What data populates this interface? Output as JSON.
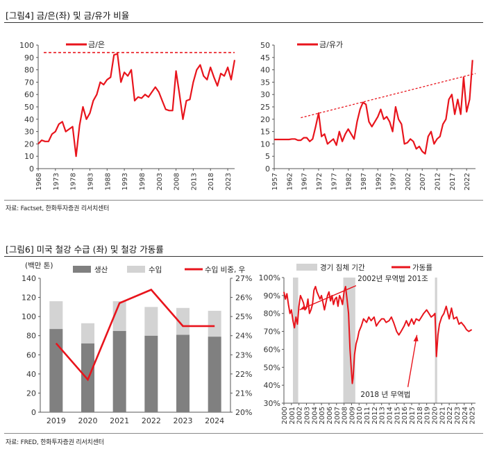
{
  "fig4": {
    "title": "[그림4] 금/은(좌) 및 금/유가 비율",
    "source": "자료: Factset, 한화투자증권 리서치센터"
  },
  "fig6": {
    "title": "[그림6] 미국 철강 수급 (좌) 및 철강 가동률",
    "source": "자료: FRED, 한화투자증권 리서치센터"
  },
  "colors": {
    "accent": "#e8141c",
    "dark_bar": "#808080",
    "light_bar": "#d3d3d3",
    "recession": "#d3d3d3"
  },
  "chart_data": [
    {
      "id": "gold_silver",
      "type": "line",
      "title": "",
      "legend": [
        "금/은"
      ],
      "x_ticks": [
        "1968",
        "1973",
        "1978",
        "1983",
        "1988",
        "1993",
        "1998",
        "2003",
        "2008",
        "2013",
        "2018",
        "2023"
      ],
      "xlim": [
        1968,
        2025
      ],
      "ylim": [
        0,
        100
      ],
      "y_ticks": [
        0,
        10,
        20,
        30,
        40,
        50,
        60,
        70,
        80,
        90,
        100
      ],
      "reference_line": 94,
      "x": [
        1968,
        1969,
        1970,
        1971,
        1972,
        1973,
        1974,
        1975,
        1976,
        1977,
        1978,
        1979,
        1980,
        1981,
        1982,
        1983,
        1984,
        1985,
        1986,
        1987,
        1988,
        1989,
        1990,
        1991,
        1992,
        1993,
        1994,
        1995,
        1996,
        1997,
        1998,
        1999,
        2000,
        2001,
        2002,
        2003,
        2004,
        2005,
        2006,
        2007,
        2008,
        2009,
        2010,
        2011,
        2012,
        2013,
        2014,
        2015,
        2016,
        2017,
        2018,
        2019,
        2020,
        2021,
        2022,
        2023,
        2024,
        2025
      ],
      "y": [
        20,
        23,
        22,
        22,
        28,
        30,
        36,
        38,
        30,
        32,
        34,
        10,
        35,
        50,
        40,
        45,
        55,
        60,
        70,
        68,
        72,
        74,
        92,
        93,
        70,
        78,
        75,
        80,
        55,
        58,
        57,
        60,
        58,
        62,
        66,
        62,
        55,
        48,
        47,
        47,
        79,
        60,
        40,
        55,
        56,
        70,
        80,
        84,
        75,
        72,
        82,
        74,
        67,
        77,
        75,
        82,
        72,
        88
      ]
    },
    {
      "id": "gold_oil",
      "type": "line",
      "title": "",
      "legend": [
        "금/유가"
      ],
      "x_ticks": [
        "1957",
        "1962",
        "1967",
        "1972",
        "1977",
        "1982",
        "1987",
        "1992",
        "1997",
        "2002",
        "2007",
        "2012",
        "2017",
        "2022"
      ],
      "xlim": [
        1957,
        2025
      ],
      "ylim": [
        0,
        50
      ],
      "y_ticks": [
        0,
        5,
        10,
        15,
        20,
        25,
        30,
        35,
        40,
        45,
        50
      ],
      "trend_line": {
        "x": [
          1966,
          2025
        ],
        "y": [
          20.6,
          38.5
        ]
      },
      "x": [
        1957,
        1958,
        1959,
        1960,
        1961,
        1962,
        1963,
        1964,
        1965,
        1966,
        1967,
        1968,
        1969,
        1970,
        1971,
        1972,
        1973,
        1974,
        1975,
        1976,
        1977,
        1978,
        1979,
        1980,
        1981,
        1982,
        1983,
        1984,
        1985,
        1986,
        1987,
        1988,
        1989,
        1990,
        1991,
        1992,
        1993,
        1994,
        1995,
        1996,
        1997,
        1998,
        1999,
        2000,
        2001,
        2002,
        2003,
        2004,
        2005,
        2006,
        2007,
        2008,
        2009,
        2010,
        2011,
        2012,
        2013,
        2014,
        2015,
        2016,
        2017,
        2018,
        2019,
        2020,
        2021,
        2022,
        2023,
        2024
      ],
      "y": [
        11.8,
        11.8,
        11.8,
        11.8,
        11.8,
        11.8,
        12,
        12,
        11.5,
        11.5,
        12.5,
        12.5,
        11,
        12,
        17,
        22.5,
        13,
        14,
        10,
        11,
        12,
        9.5,
        15,
        11,
        14,
        16,
        14,
        12,
        19,
        24,
        26.8,
        26,
        19,
        17,
        19,
        21,
        24,
        20,
        21,
        19,
        15,
        25,
        20,
        18,
        10,
        10.5,
        12,
        11,
        8,
        9,
        7,
        6,
        13,
        15,
        10,
        12,
        13,
        18,
        20,
        28,
        30,
        22,
        28,
        22,
        37,
        23,
        28,
        44
      ]
    },
    {
      "id": "steel_supply",
      "type": "bar",
      "title": "",
      "unit_label": "(백만 톤)",
      "categories": [
        "2019",
        "2020",
        "2021",
        "2022",
        "2023",
        "2024"
      ],
      "series": [
        {
          "name": "생산",
          "values": [
            87,
            72,
            85,
            80,
            81,
            79
          ]
        },
        {
          "name": "수입",
          "values": [
            29,
            21,
            31,
            30,
            28,
            27
          ]
        }
      ],
      "line_series": {
        "name": "수입 비중, 우",
        "values": [
          23.6,
          21.7,
          25.7,
          26.4,
          24.5,
          24.5
        ]
      },
      "ylim": [
        0,
        140
      ],
      "y_ticks": [
        0,
        20,
        40,
        60,
        80,
        100,
        120,
        140
      ],
      "y2lim": [
        20,
        27
      ],
      "y2_ticks": [
        "20%",
        "21%",
        "22%",
        "23%",
        "24%",
        "25%",
        "26%",
        "27%"
      ]
    },
    {
      "id": "steel_utilization",
      "type": "line",
      "title": "",
      "legend": [
        "경기 침체 기간",
        "가동률"
      ],
      "x_ticks": [
        "2000",
        "2001",
        "2002",
        "2003",
        "2004",
        "2005",
        "2006",
        "2007",
        "2008",
        "2009",
        "2010",
        "2011",
        "2012",
        "2013",
        "2014",
        "2015",
        "2016",
        "2017",
        "2018",
        "2019",
        "2020",
        "2021",
        "2022",
        "2023",
        "2024",
        "2025"
      ],
      "xlim": [
        2000,
        2025.5
      ],
      "ylim": [
        30,
        100
      ],
      "y_ticks": [
        "30%",
        "40%",
        "50%",
        "60%",
        "70%",
        "80%",
        "90%",
        "100%"
      ],
      "recessions": [
        [
          2001.2,
          2001.9
        ],
        [
          2007.9,
          2009.5
        ],
        [
          2020.1,
          2020.4
        ]
      ],
      "annotations": [
        {
          "text": "2002년 무역법 201조",
          "x": 2002.6,
          "y": 86
        },
        {
          "text": "2018 년 무역법",
          "x": 2017.7,
          "y": 68
        }
      ],
      "x": [
        2000,
        2000.2,
        2000.4,
        2000.6,
        2000.8,
        2001,
        2001.2,
        2001.4,
        2001.6,
        2001.8,
        2002,
        2002.2,
        2002.4,
        2002.6,
        2002.8,
        2003,
        2003.2,
        2003.4,
        2003.6,
        2003.8,
        2004,
        2004.2,
        2004.4,
        2004.6,
        2004.8,
        2005,
        2005.2,
        2005.4,
        2005.6,
        2005.8,
        2006,
        2006.2,
        2006.4,
        2006.6,
        2006.8,
        2007,
        2007.2,
        2007.4,
        2007.6,
        2007.8,
        2008,
        2008.2,
        2008.4,
        2008.6,
        2008.8,
        2009,
        2009.1,
        2009.2,
        2009.4,
        2009.6,
        2009.8,
        2010,
        2010.3,
        2010.6,
        2011,
        2011.3,
        2011.6,
        2012,
        2012.3,
        2012.6,
        2013,
        2013.3,
        2013.6,
        2014,
        2014.3,
        2014.6,
        2015,
        2015.3,
        2015.6,
        2016,
        2016.3,
        2016.6,
        2017,
        2017.3,
        2017.6,
        2018,
        2018.3,
        2018.6,
        2019,
        2019.3,
        2019.6,
        2019.9,
        2020.1,
        2020.3,
        2020.5,
        2020.7,
        2021,
        2021.3,
        2021.6,
        2022,
        2022.3,
        2022.6,
        2023,
        2023.3,
        2023.6,
        2024,
        2024.3,
        2024.6,
        2025
      ],
      "y": [
        92,
        88,
        91,
        85,
        80,
        82,
        76,
        72,
        78,
        74,
        84,
        90,
        88,
        86,
        82,
        83,
        88,
        80,
        82,
        85,
        93,
        95,
        92,
        90,
        88,
        90,
        86,
        82,
        86,
        90,
        92,
        87,
        90,
        85,
        88,
        89,
        84,
        90,
        88,
        85,
        92,
        95,
        88,
        80,
        60,
        47,
        41,
        44,
        57,
        63,
        66,
        70,
        73,
        77,
        75,
        78,
        76,
        78,
        73,
        75,
        77,
        77,
        75,
        76,
        78,
        75,
        70,
        68,
        70,
        73,
        76,
        73,
        77,
        74,
        77,
        76,
        78,
        80,
        82,
        80,
        78,
        79,
        80,
        56,
        68,
        74,
        78,
        80,
        84,
        77,
        83,
        77,
        78,
        74,
        75,
        73,
        71,
        70,
        71
      ]
    }
  ]
}
